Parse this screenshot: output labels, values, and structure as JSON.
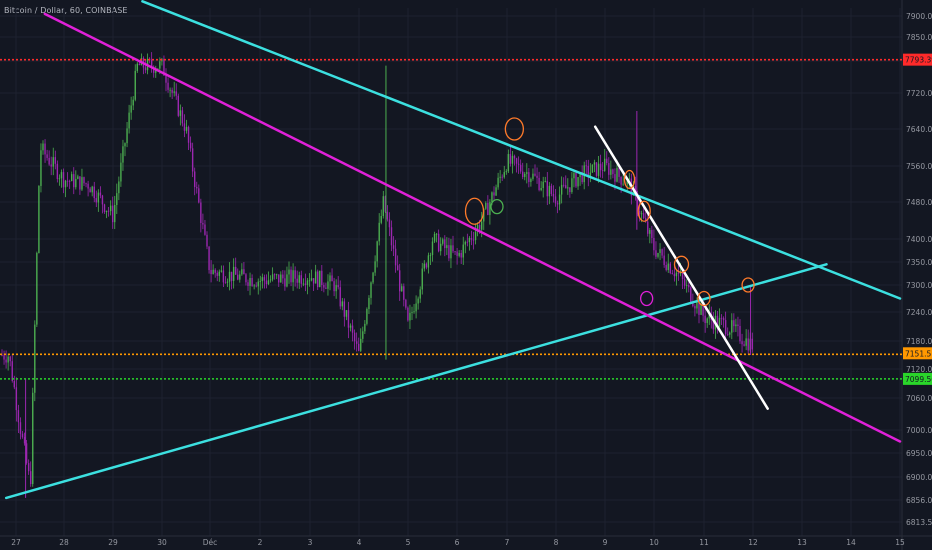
{
  "header": {
    "title": "Bitcoin / Dollar, 60, COINBASE"
  },
  "colors": {
    "background": "#131722",
    "grid": "#1e2230",
    "axis_text": "#9598a1",
    "up_candle": "#4caf50",
    "down_candle": "#9c27b0",
    "channel_lines": "#3ce0e0",
    "magenta_line": "#e020d8",
    "white_line": "#ffffff",
    "resistance_red": "#ff2a2a",
    "orange_line": "#ff9800",
    "support_green": "#2ad62a",
    "marker_circles": "#ff7a2a"
  },
  "chart_data": {
    "type": "candlestick",
    "title": "Bitcoin / Dollar, 60, COINBASE",
    "x_tick_labels": [
      "27",
      "28",
      "29",
      "30",
      "Déc",
      "2",
      "3",
      "4",
      "5",
      "6",
      "7",
      "8",
      "9",
      "10",
      "11",
      "12",
      "13",
      "14",
      "15"
    ],
    "y_tick_labels": [
      "7900.00",
      "7850.00",
      "7790.00",
      "7720.00",
      "7640.00",
      "7560.00",
      "7480.00",
      "7400.00",
      "7350.00",
      "7300.00",
      "7240.00",
      "7180.00",
      "7120.00",
      "7060.00",
      "7000.00",
      "6950.00",
      "6900.00",
      "6856.00",
      "6813.50"
    ],
    "ylim": [
      6790,
      7935
    ],
    "series_ohlc_keypoints": [
      {
        "x": "26.85",
        "close": 7150
      },
      {
        "x": "27.3",
        "close": 6880
      },
      {
        "x": "27.5",
        "close": 7600
      },
      {
        "x": "28.0",
        "close": 7530
      },
      {
        "x": "28.5",
        "close": 7520
      },
      {
        "x": "29.0",
        "close": 7450
      },
      {
        "x": "29.5",
        "close": 7780
      },
      {
        "x": "30.0",
        "close": 7780
      },
      {
        "x": "30.5",
        "close": 7640
      },
      {
        "x": "Déc 1",
        "close": 7330
      },
      {
        "x": "2",
        "close": 7310
      },
      {
        "x": "3",
        "close": 7320
      },
      {
        "x": "3.5",
        "close": 7300
      },
      {
        "x": "4.0",
        "close": 7150
      },
      {
        "x": "4.5",
        "close": 7480
      },
      {
        "x": "5.0",
        "close": 7210
      },
      {
        "x": "5.5",
        "close": 7400
      },
      {
        "x": "6.0",
        "close": 7360
      },
      {
        "x": "6.5",
        "close": 7440
      },
      {
        "x": "7.0",
        "close": 7570
      },
      {
        "x": "7.5",
        "close": 7540
      },
      {
        "x": "8.0",
        "close": 7490
      },
      {
        "x": "8.5",
        "close": 7540
      },
      {
        "x": "9.0",
        "close": 7560
      },
      {
        "x": "9.5",
        "close": 7520
      },
      {
        "x": "10.0",
        "close": 7380
      },
      {
        "x": "10.5",
        "close": 7320
      },
      {
        "x": "11.0",
        "close": 7230
      },
      {
        "x": "11.5",
        "close": 7210
      },
      {
        "x": "12.0",
        "close": 7170
      }
    ],
    "horizontal_levels": [
      {
        "label": "7793.39",
        "value": 7793.39,
        "color": "#ff2a2a",
        "style": "dotted"
      },
      {
        "label": "7151.51",
        "value": 7151.51,
        "color": "#ff9800",
        "style": "dotted"
      },
      {
        "label": "7099.56",
        "value": 7099.56,
        "color": "#2ad62a",
        "style": "dotted"
      }
    ],
    "drawn_lines": [
      {
        "color": "#3ce0e0",
        "from": {
          "x": "26.8",
          "y": 6860
        },
        "to": {
          "x": "13.5",
          "y": 7345
        }
      },
      {
        "color": "#3ce0e0",
        "from": {
          "x": "29.6",
          "y": 7935
        },
        "to": {
          "x": "15.0",
          "y": 7270
        }
      },
      {
        "color": "#e020d8",
        "from": {
          "x": "27.6",
          "y": 7905
        },
        "to": {
          "x": "15.0",
          "y": 6975
        }
      },
      {
        "color": "#ffffff",
        "from": {
          "x": "8.8",
          "y": 7645
        },
        "to": {
          "x": "12.3",
          "y": 7040
        }
      }
    ],
    "grid": true,
    "legend": "none"
  }
}
